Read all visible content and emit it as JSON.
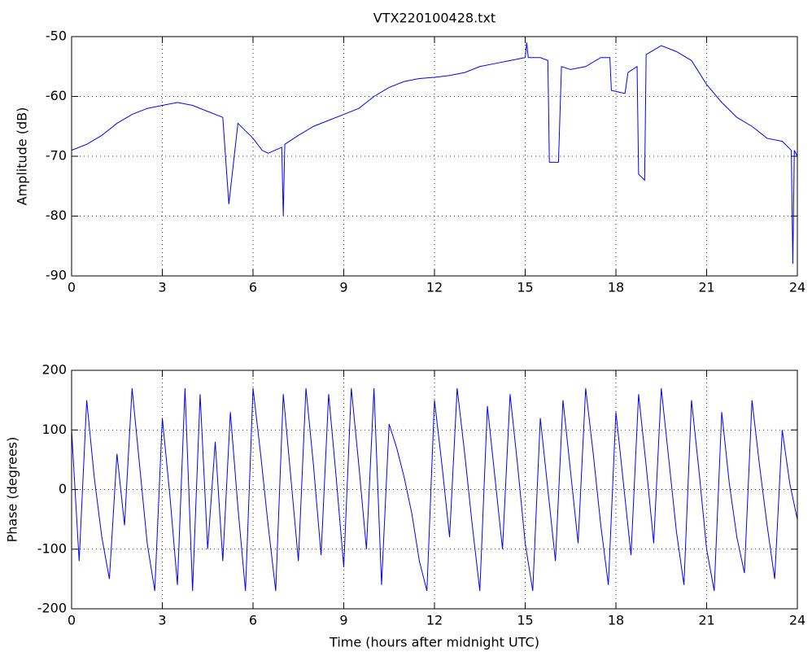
{
  "chart_data": [
    {
      "type": "line",
      "title": "VTX220100428.txt",
      "ylabel": "Amplitude (dB)",
      "xlim": [
        0,
        24
      ],
      "xticks": [
        0,
        3,
        6,
        9,
        12,
        15,
        18,
        21,
        24
      ],
      "ylim": [
        -90,
        -50
      ],
      "yticks": [
        -90,
        -80,
        -70,
        -60,
        -50
      ],
      "grid": true,
      "x": [
        0,
        0.5,
        1,
        1.5,
        2,
        2.5,
        3,
        3.5,
        4,
        4.5,
        5,
        5.2,
        5.5,
        6,
        6.3,
        6.5,
        6.95,
        7,
        7.05,
        7.5,
        8,
        8.5,
        9,
        9.5,
        10,
        10.5,
        11,
        11.5,
        12,
        12.5,
        13,
        13.5,
        14,
        14.5,
        15,
        15.05,
        15.1,
        15.5,
        15.75,
        15.8,
        16.1,
        16.2,
        16.5,
        17,
        17.5,
        17.8,
        17.85,
        18.3,
        18.4,
        18.7,
        18.75,
        18.95,
        19,
        19.5,
        20,
        20.5,
        21,
        21.5,
        22,
        22.5,
        23,
        23.5,
        23.8,
        23.85,
        23.9,
        24
      ],
      "series": [
        {
          "color": "#0000ff",
          "values": [
            -69,
            -68,
            -66.5,
            -64.5,
            -63,
            -62,
            -61.5,
            -61,
            -61.5,
            -62.5,
            -63.5,
            -78,
            -64.5,
            -67,
            -69,
            -69.5,
            -68.5,
            -80,
            -68,
            -66.5,
            -65,
            -64,
            -63,
            -62,
            -60,
            -58.5,
            -57.5,
            -57,
            -56.8,
            -56.5,
            -56,
            -55,
            -54.5,
            -54,
            -53.5,
            -51,
            -53.5,
            -53.5,
            -54,
            -71,
            -71,
            -55,
            -55.5,
            -55,
            -53.5,
            -53.5,
            -59,
            -59.5,
            -56,
            -55,
            -73,
            -74,
            -53,
            -51.5,
            -52.5,
            -54,
            -58,
            -61,
            -63.5,
            -65,
            -67,
            -67.5,
            -69,
            -88,
            -69,
            -70
          ]
        }
      ]
    },
    {
      "type": "line",
      "xlabel": "Time (hours after midnight UTC)",
      "ylabel": "Phase (degrees)",
      "xlim": [
        0,
        24
      ],
      "xticks": [
        0,
        3,
        6,
        9,
        12,
        15,
        18,
        21,
        24
      ],
      "ylim": [
        -200,
        200
      ],
      "yticks": [
        -200,
        -100,
        0,
        100,
        200
      ],
      "grid": true,
      "x": [
        0,
        0.25,
        0.5,
        0.75,
        1,
        1.25,
        1.5,
        1.75,
        2,
        2.25,
        2.5,
        2.75,
        3,
        3.25,
        3.5,
        3.75,
        4,
        4.25,
        4.5,
        4.75,
        5,
        5.25,
        5.5,
        5.75,
        6,
        6.25,
        6.5,
        6.75,
        7,
        7.25,
        7.5,
        7.75,
        8,
        8.25,
        8.5,
        8.75,
        9,
        9.25,
        9.5,
        9.75,
        10,
        10.25,
        10.5,
        10.75,
        11,
        11.25,
        11.5,
        11.75,
        12,
        12.25,
        12.5,
        12.75,
        13,
        13.25,
        13.5,
        13.75,
        14,
        14.25,
        14.5,
        14.75,
        15,
        15.25,
        15.5,
        15.75,
        16,
        16.25,
        16.5,
        16.75,
        17,
        17.25,
        17.5,
        17.75,
        18,
        18.25,
        18.5,
        18.75,
        19,
        19.25,
        19.5,
        19.75,
        20,
        20.25,
        20.5,
        20.75,
        21,
        21.25,
        21.5,
        21.75,
        22,
        22.25,
        22.5,
        22.75,
        23,
        23.25,
        23.5,
        23.75,
        24
      ],
      "series": [
        {
          "color": "#0000ff",
          "values": [
            100,
            -120,
            150,
            20,
            -80,
            -150,
            60,
            -60,
            170,
            40,
            -90,
            -170,
            120,
            -10,
            -160,
            170,
            -170,
            160,
            -100,
            80,
            -120,
            130,
            -30,
            -170,
            170,
            60,
            -60,
            -170,
            160,
            20,
            -120,
            170,
            40,
            -110,
            160,
            20,
            -130,
            170,
            40,
            -100,
            170,
            -160,
            110,
            70,
            20,
            -40,
            -120,
            -170,
            150,
            40,
            -80,
            170,
            60,
            -60,
            -170,
            140,
            20,
            -100,
            160,
            40,
            -90,
            -170,
            120,
            0,
            -120,
            150,
            30,
            -90,
            170,
            60,
            -60,
            -160,
            130,
            10,
            -110,
            160,
            40,
            -90,
            170,
            50,
            -70,
            -160,
            150,
            30,
            -100,
            -170,
            130,
            10,
            -80,
            -140,
            150,
            40,
            -60,
            -150,
            100,
            10,
            -50
          ]
        }
      ]
    }
  ]
}
